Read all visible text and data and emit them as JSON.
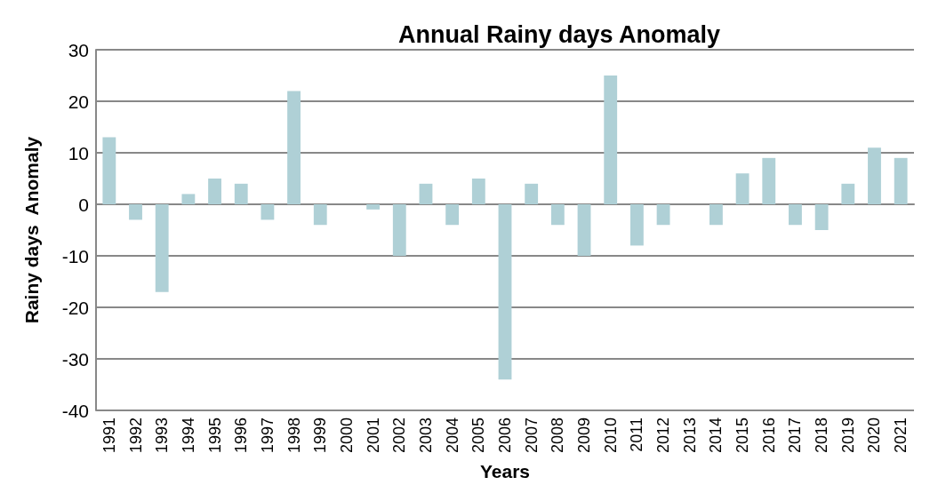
{
  "chart_data": {
    "type": "bar",
    "title": "Annual Rainy days Anomaly",
    "xlabel": "Years",
    "ylabel": "Rainy days  Anomaly",
    "categories": [
      "1991",
      "1992",
      "1993",
      "1994",
      "1995",
      "1996",
      "1997",
      "1998",
      "1999",
      "2000",
      "2001",
      "2002",
      "2003",
      "2004",
      "2005",
      "2006",
      "2007",
      "2008",
      "2009",
      "2010",
      "2011",
      "2012",
      "2013",
      "2014",
      "2015",
      "2016",
      "2017",
      "2018",
      "2019",
      "2020",
      "2021"
    ],
    "values": [
      13,
      -3,
      -17,
      2,
      5,
      4,
      -3,
      22,
      -4,
      0,
      -1,
      -10,
      4,
      -4,
      5,
      -34,
      4,
      -4,
      -10,
      25,
      -8,
      -4,
      0,
      -4,
      6,
      9,
      -4,
      -5,
      4,
      11,
      9
    ],
    "color": "#afd0d6",
    "ylim": [
      -40,
      30
    ],
    "yticks": [
      -40,
      -30,
      -20,
      -10,
      0,
      10,
      20,
      30
    ],
    "grid": "y"
  }
}
